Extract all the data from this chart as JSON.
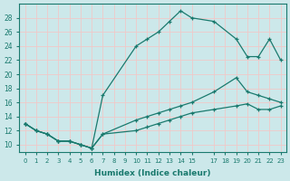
{
  "xlabel": "Humidex (Indice chaleur)",
  "bg_color": "#cce8ea",
  "grid_color": "#f0c8c8",
  "line_color": "#1a7a6e",
  "xlim": [
    -0.5,
    23.5
  ],
  "ylim": [
    9.0,
    30.0
  ],
  "yticks": [
    10,
    12,
    14,
    16,
    18,
    20,
    22,
    24,
    26,
    28
  ],
  "xticks": [
    0,
    1,
    2,
    3,
    4,
    5,
    6,
    7,
    8,
    9,
    10,
    11,
    12,
    13,
    14,
    15,
    17,
    18,
    19,
    20,
    21,
    22,
    23
  ],
  "line1_x": [
    0,
    1,
    2,
    3,
    4,
    5,
    6,
    7,
    10,
    11,
    12,
    13,
    14,
    15,
    17,
    19,
    20,
    21,
    22,
    23
  ],
  "line1_y": [
    13,
    12,
    11.5,
    10.5,
    10.5,
    10,
    9.5,
    17,
    24,
    25,
    26,
    27.5,
    29,
    28,
    27.5,
    25,
    22.5,
    22.5,
    25,
    22
  ],
  "line2_x": [
    0,
    1,
    2,
    3,
    4,
    5,
    6,
    7,
    10,
    11,
    12,
    13,
    14,
    15,
    17,
    19,
    20,
    21,
    22,
    23
  ],
  "line2_y": [
    13,
    12,
    11.5,
    10.5,
    10.5,
    10,
    9.5,
    11.5,
    13.5,
    14,
    14.5,
    15,
    15.5,
    16,
    17.5,
    19.5,
    17.5,
    17,
    16.5,
    16
  ],
  "line3_x": [
    0,
    1,
    2,
    3,
    4,
    5,
    6,
    7,
    10,
    11,
    12,
    13,
    14,
    15,
    17,
    19,
    20,
    21,
    22,
    23
  ],
  "line3_y": [
    13,
    12,
    11.5,
    10.5,
    10.5,
    10,
    9.5,
    11.5,
    12,
    12.5,
    13,
    13.5,
    14,
    14.5,
    15,
    15.5,
    15.8,
    15,
    15,
    15.5
  ]
}
